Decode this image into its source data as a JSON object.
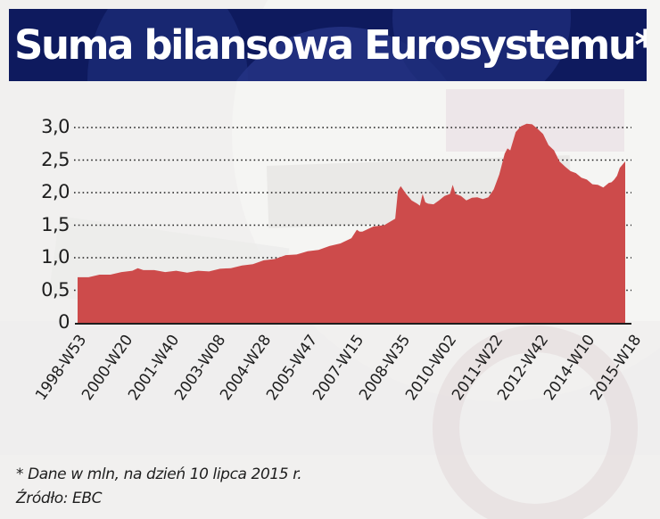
{
  "title": "Suma bilansowa Eurosystemu*",
  "footnotes": {
    "note": "* Dane w mln, na dzień 10 lipca 2015 r.",
    "source": "Źródło: EBC"
  },
  "colors": {
    "banner": "#0e1a5e",
    "area": "#cd4b4b",
    "text": "#1e1e1e"
  },
  "chart_data": {
    "type": "area",
    "title": "Suma bilansowa Eurosystemu*",
    "xlabel": "",
    "ylabel": "",
    "ylim": [
      0,
      3.0
    ],
    "grid": "dotted horizontal",
    "legend": "none",
    "y_ticks": [
      "0",
      "0,5",
      "1,0",
      "1,5",
      "2,0",
      "2,5",
      "3,0"
    ],
    "categories": [
      "1998-W53",
      "2000-W20",
      "2001-W40",
      "2003-W08",
      "2004-W28",
      "2005-W47",
      "2007-W15",
      "2008-W35",
      "2010-W02",
      "2011-W22",
      "2012-W42",
      "2014-W10",
      "2015-W18"
    ],
    "values": [
      0.7,
      0.83,
      0.8,
      0.8,
      0.88,
      1.02,
      1.18,
      1.45,
      1.88,
      1.95,
      3.05,
      2.2,
      2.45
    ],
    "series": [
      {
        "name": "Suma bilansowa",
        "points": [
          [
            0.0,
            0.7
          ],
          [
            0.02,
            0.72
          ],
          [
            0.04,
            0.74
          ],
          [
            0.06,
            0.76
          ],
          [
            0.08,
            0.78
          ],
          [
            0.1,
            0.82
          ],
          [
            0.11,
            0.84
          ],
          [
            0.12,
            0.83
          ],
          [
            0.14,
            0.81
          ],
          [
            0.16,
            0.8
          ],
          [
            0.18,
            0.8
          ],
          [
            0.2,
            0.79
          ],
          [
            0.22,
            0.8
          ],
          [
            0.24,
            0.81
          ],
          [
            0.26,
            0.83
          ],
          [
            0.28,
            0.86
          ],
          [
            0.3,
            0.88
          ],
          [
            0.32,
            0.92
          ],
          [
            0.34,
            0.96
          ],
          [
            0.36,
            1.0
          ],
          [
            0.38,
            1.04
          ],
          [
            0.4,
            1.07
          ],
          [
            0.42,
            1.1
          ],
          [
            0.44,
            1.14
          ],
          [
            0.46,
            1.18
          ],
          [
            0.48,
            1.24
          ],
          [
            0.5,
            1.3
          ],
          [
            0.51,
            1.45
          ],
          [
            0.515,
            1.4
          ],
          [
            0.52,
            1.42
          ],
          [
            0.54,
            1.48
          ],
          [
            0.56,
            1.52
          ],
          [
            0.58,
            1.6
          ],
          [
            0.585,
            2.05
          ],
          [
            0.59,
            2.1
          ],
          [
            0.6,
            2.0
          ],
          [
            0.61,
            1.88
          ],
          [
            0.62,
            1.85
          ],
          [
            0.625,
            1.8
          ],
          [
            0.63,
            2.0
          ],
          [
            0.635,
            1.85
          ],
          [
            0.64,
            1.85
          ],
          [
            0.65,
            1.82
          ],
          [
            0.66,
            1.9
          ],
          [
            0.67,
            1.95
          ],
          [
            0.68,
            2.0
          ],
          [
            0.685,
            2.12
          ],
          [
            0.69,
            2.0
          ],
          [
            0.7,
            1.95
          ],
          [
            0.71,
            1.9
          ],
          [
            0.72,
            1.92
          ],
          [
            0.73,
            1.95
          ],
          [
            0.74,
            1.9
          ],
          [
            0.75,
            1.95
          ],
          [
            0.76,
            2.05
          ],
          [
            0.77,
            2.3
          ],
          [
            0.78,
            2.6
          ],
          [
            0.785,
            2.7
          ],
          [
            0.79,
            2.65
          ],
          [
            0.8,
            2.95
          ],
          [
            0.81,
            3.02
          ],
          [
            0.82,
            3.08
          ],
          [
            0.83,
            3.05
          ],
          [
            0.84,
            3.0
          ],
          [
            0.85,
            2.9
          ],
          [
            0.86,
            2.75
          ],
          [
            0.87,
            2.65
          ],
          [
            0.88,
            2.5
          ],
          [
            0.89,
            2.4
          ],
          [
            0.9,
            2.35
          ],
          [
            0.91,
            2.3
          ],
          [
            0.92,
            2.25
          ],
          [
            0.93,
            2.2
          ],
          [
            0.94,
            2.15
          ],
          [
            0.95,
            2.12
          ],
          [
            0.96,
            2.1
          ],
          [
            0.97,
            2.15
          ],
          [
            0.975,
            2.18
          ],
          [
            0.98,
            2.2
          ],
          [
            0.985,
            2.28
          ],
          [
            0.99,
            2.38
          ],
          [
            1.0,
            2.5
          ]
        ]
      }
    ]
  }
}
